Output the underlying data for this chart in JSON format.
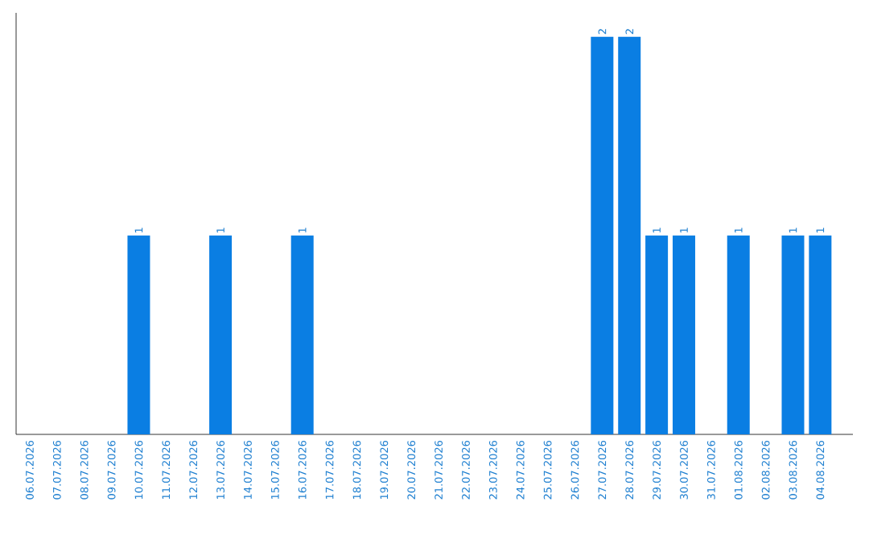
{
  "chart_data": {
    "type": "bar",
    "categories": [
      "06.07.2026",
      "07.07.2026",
      "08.07.2026",
      "09.07.2026",
      "10.07.2026",
      "11.07.2026",
      "12.07.2026",
      "13.07.2026",
      "14.07.2026",
      "15.07.2026",
      "16.07.2026",
      "17.07.2026",
      "18.07.2026",
      "19.07.2026",
      "20.07.2026",
      "21.07.2026",
      "22.07.2026",
      "23.07.2026",
      "24.07.2026",
      "25.07.2026",
      "26.07.2026",
      "27.07.2026",
      "28.07.2026",
      "29.07.2026",
      "30.07.2026",
      "31.07.2026",
      "01.08.2026",
      "02.08.2026",
      "03.08.2026",
      "04.08.2026"
    ],
    "values": [
      0,
      0,
      0,
      0,
      1,
      0,
      0,
      1,
      0,
      0,
      1,
      0,
      0,
      0,
      0,
      0,
      0,
      0,
      0,
      0,
      0,
      2,
      2,
      1,
      1,
      0,
      1,
      0,
      1,
      1
    ],
    "value_labels": [
      null,
      null,
      null,
      null,
      "1",
      null,
      null,
      "1",
      null,
      null,
      "1",
      null,
      null,
      null,
      null,
      null,
      null,
      null,
      null,
      null,
      null,
      "2",
      "2",
      "1",
      "1",
      null,
      "1",
      null,
      "1",
      "1"
    ],
    "color": "#0a7ee3"
  }
}
